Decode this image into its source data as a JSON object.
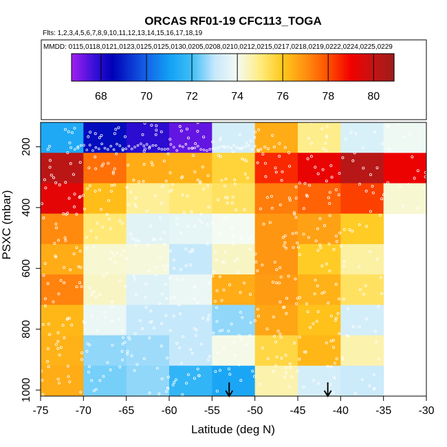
{
  "chart_data": {
    "type": "heatmap",
    "title": "ORCAS RF01-19 CFC113_TOGA",
    "flights_label": "Flts: 1,2,3,4,5,6,7,8,9,10,11,12,13,14,15,16,17,18,19",
    "mmdd_label": "MMDD: 0115,0118,0121,0123,0125,0125,0130,0205,0208,0210,0212,0215,0217,0218,0219,0222,0224,0225,0229",
    "xlabel": "Latitude (deg N)",
    "ylabel": "PSXC (mbar)",
    "xlim": [
      -75,
      -30
    ],
    "ylim": [
      1000,
      100
    ],
    "x_ticks": [
      -75,
      -70,
      -65,
      -60,
      -55,
      -50,
      -45,
      -40,
      -35,
      -30
    ],
    "y_ticks": [
      200,
      400,
      600,
      800,
      1000
    ],
    "colorbar": {
      "range": [
        66.7,
        80.9
      ],
      "ticks": [
        68,
        70,
        72,
        74,
        76,
        78,
        80
      ],
      "stops": [
        {
          "v": 66.7,
          "c": "#a020f0"
        },
        {
          "v": 67.7,
          "c": "#3a10d8"
        },
        {
          "v": 68.5,
          "c": "#0000b8"
        },
        {
          "v": 70.0,
          "c": "#1463e6"
        },
        {
          "v": 71.0,
          "c": "#12a0f4"
        },
        {
          "v": 72.0,
          "c": "#3fbef8"
        },
        {
          "v": 73.0,
          "c": "#c6e8fb"
        },
        {
          "v": 74.0,
          "c": "#f4fbf3"
        },
        {
          "v": 75.0,
          "c": "#ffec80"
        },
        {
          "v": 76.0,
          "c": "#ffc81c"
        },
        {
          "v": 77.0,
          "c": "#ff9010"
        },
        {
          "v": 78.0,
          "c": "#ff5000"
        },
        {
          "v": 79.0,
          "c": "#f20000"
        },
        {
          "v": 80.0,
          "c": "#c41414"
        },
        {
          "v": 80.9,
          "c": "#9c1c1c"
        }
      ]
    },
    "lat_bins": [
      -75,
      -70,
      -65,
      -60,
      -55,
      -50,
      -45,
      -40,
      -35,
      -30
    ],
    "p_bins": [
      120,
      220,
      320,
      420,
      520,
      620,
      720,
      820,
      920,
      1020
    ],
    "grid": [
      [
        71.3,
        68.7,
        67.9,
        67.3,
        73.3,
        76.5,
        74.9,
        73.4,
        73.9
      ],
      [
        80.2,
        77.5,
        76.5,
        76.4,
        75.7,
        78.5,
        79.2,
        80.3,
        79.1
      ],
      [
        79.3,
        76.2,
        74.8,
        75.1,
        75.3,
        77.3,
        77.7,
        78.2,
        74.3
      ],
      [
        77.1,
        75.1,
        73.6,
        73.7,
        74.0,
        76.9,
        76.7,
        75.9,
        null
      ],
      [
        76.5,
        74.3,
        74.2,
        73.0,
        74.4,
        76.9,
        75.9,
        74.7,
        null
      ],
      [
        77.2,
        74.4,
        73.5,
        73.8,
        76.5,
        76.8,
        76.4,
        75.3,
        null
      ],
      [
        76.3,
        73.8,
        73.0,
        73.0,
        72.6,
        76.6,
        76.1,
        73.3,
        null
      ],
      [
        76.4,
        72.6,
        72.7,
        73.0,
        74.1,
        75.6,
        76.3,
        74.6,
        null
      ],
      [
        76.5,
        72.4,
        72.6,
        71.7,
        71.2,
        74.6,
        73.3,
        73.1,
        null
      ]
    ],
    "arrows_lat": [
      -53,
      -41.5
    ]
  }
}
